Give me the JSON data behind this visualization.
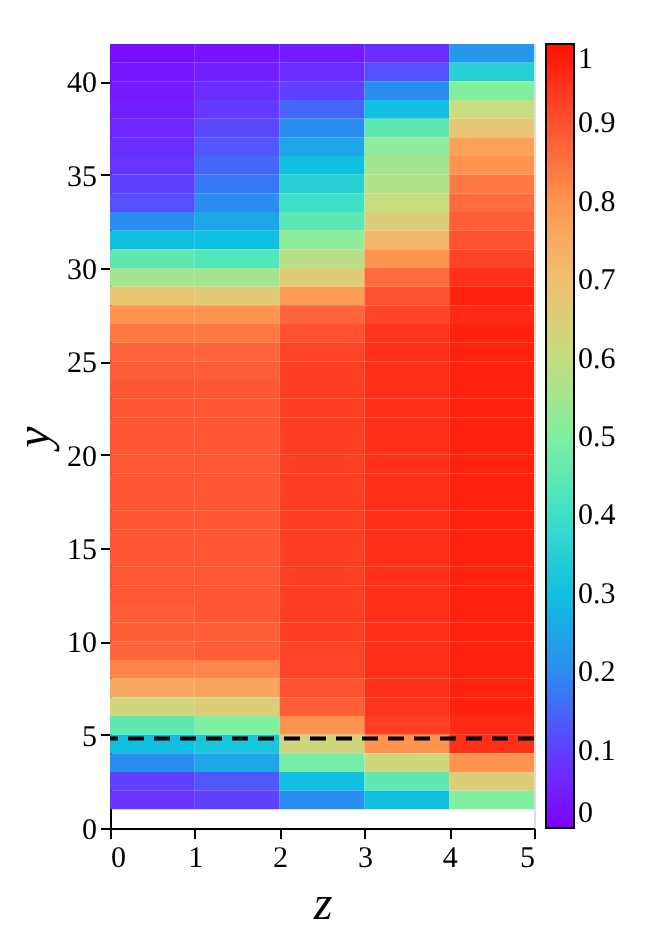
{
  "chart_data": {
    "type": "heatmap",
    "xlabel": "z",
    "ylabel": "y",
    "x": [
      0.5,
      1.5,
      2.5,
      3.5,
      4.5
    ],
    "y": [
      41.5,
      40.5,
      39.5,
      38.5,
      37.5,
      36.5,
      35.5,
      34.5,
      33.5,
      32.5,
      31.5,
      30.5,
      29.5,
      28.5,
      27.5,
      26.5,
      25.5,
      24.5,
      23.5,
      22.5,
      21.5,
      20.5,
      19.5,
      18.5,
      17.5,
      16.5,
      15.5,
      14.5,
      13.5,
      12.5,
      11.5,
      10.5,
      9.5,
      8.5,
      7.5,
      6.5,
      5.5,
      4.5,
      3.5,
      2.5,
      1.5
    ],
    "cells": [
      [
        0.02,
        0.03,
        0.04,
        0.07,
        0.22
      ],
      [
        0.03,
        0.05,
        0.07,
        0.12,
        0.35
      ],
      [
        0.04,
        0.07,
        0.1,
        0.2,
        0.5
      ],
      [
        0.05,
        0.09,
        0.15,
        0.3,
        0.6
      ],
      [
        0.06,
        0.11,
        0.2,
        0.45,
        0.68
      ],
      [
        0.07,
        0.13,
        0.25,
        0.52,
        0.77
      ],
      [
        0.08,
        0.15,
        0.3,
        0.55,
        0.8
      ],
      [
        0.1,
        0.17,
        0.35,
        0.57,
        0.84
      ],
      [
        0.12,
        0.2,
        0.4,
        0.6,
        0.86
      ],
      [
        0.2,
        0.25,
        0.45,
        0.65,
        0.88
      ],
      [
        0.3,
        0.3,
        0.52,
        0.72,
        0.9
      ],
      [
        0.45,
        0.43,
        0.58,
        0.8,
        0.92
      ],
      [
        0.55,
        0.55,
        0.66,
        0.86,
        0.95
      ],
      [
        0.68,
        0.66,
        0.78,
        0.9,
        0.97
      ],
      [
        0.8,
        0.8,
        0.87,
        0.92,
        0.96
      ],
      [
        0.84,
        0.84,
        0.9,
        0.94,
        0.97
      ],
      [
        0.87,
        0.87,
        0.92,
        0.95,
        0.97
      ],
      [
        0.88,
        0.88,
        0.93,
        0.95,
        0.97
      ],
      [
        0.89,
        0.89,
        0.93,
        0.95,
        0.97
      ],
      [
        0.89,
        0.89,
        0.93,
        0.95,
        0.97
      ],
      [
        0.89,
        0.89,
        0.93,
        0.95,
        0.97
      ],
      [
        0.89,
        0.89,
        0.93,
        0.95,
        0.97
      ],
      [
        0.89,
        0.89,
        0.93,
        0.95,
        0.97
      ],
      [
        0.89,
        0.89,
        0.93,
        0.95,
        0.97
      ],
      [
        0.89,
        0.89,
        0.93,
        0.95,
        0.97
      ],
      [
        0.89,
        0.89,
        0.93,
        0.95,
        0.97
      ],
      [
        0.89,
        0.89,
        0.93,
        0.95,
        0.97
      ],
      [
        0.89,
        0.89,
        0.93,
        0.95,
        0.97
      ],
      [
        0.89,
        0.89,
        0.93,
        0.95,
        0.97
      ],
      [
        0.89,
        0.89,
        0.93,
        0.95,
        0.97
      ],
      [
        0.88,
        0.89,
        0.93,
        0.95,
        0.97
      ],
      [
        0.88,
        0.88,
        0.93,
        0.95,
        0.97
      ],
      [
        0.87,
        0.88,
        0.92,
        0.95,
        0.97
      ],
      [
        0.82,
        0.82,
        0.92,
        0.95,
        0.97
      ],
      [
        0.75,
        0.76,
        0.9,
        0.95,
        0.97
      ],
      [
        0.62,
        0.65,
        0.88,
        0.94,
        0.97
      ],
      [
        0.45,
        0.5,
        0.8,
        0.93,
        0.96
      ],
      [
        0.3,
        0.32,
        0.62,
        0.8,
        0.95
      ],
      [
        0.2,
        0.25,
        0.48,
        0.62,
        0.8
      ],
      [
        0.1,
        0.13,
        0.3,
        0.45,
        0.65
      ],
      [
        0.08,
        0.1,
        0.2,
        0.3,
        0.5
      ]
    ],
    "xlim": [
      0,
      5
    ],
    "xticks": [
      0,
      1,
      2,
      3,
      4,
      5
    ],
    "ylim": [
      0,
      42
    ],
    "yticks": [
      0,
      5,
      10,
      15,
      20,
      25,
      30,
      35,
      40
    ],
    "clim": [
      0,
      1
    ],
    "cticks": [
      0,
      0.1,
      0.2,
      0.3,
      0.4,
      0.5,
      0.6,
      0.7,
      0.8,
      0.9,
      1
    ],
    "ref_lines": [
      {
        "axis": "y",
        "value": 4.8,
        "color": "#000000",
        "line_style": "dashed"
      }
    ]
  }
}
